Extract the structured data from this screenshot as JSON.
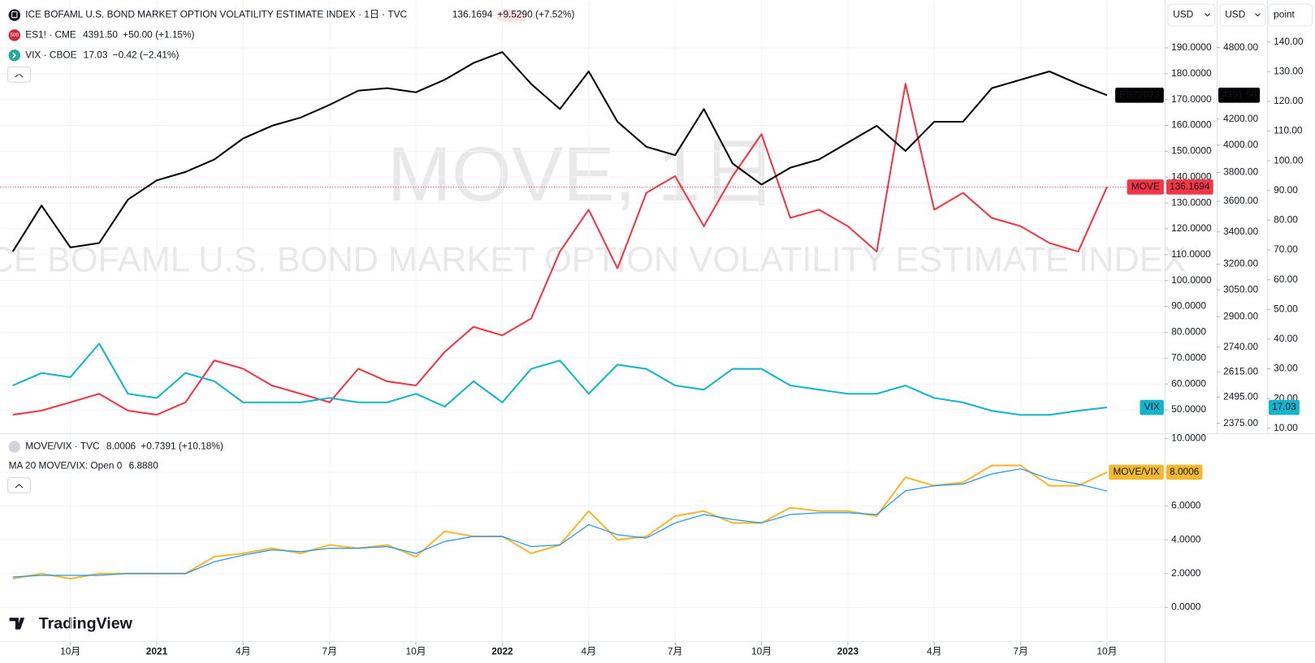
{
  "ui": {
    "selectors": [
      "USD",
      "USD",
      "point"
    ],
    "brand": "TradingView",
    "es_icon": "500"
  },
  "chart_data": [
    {
      "type": "line",
      "watermark": [
        "MOVE, 1日",
        "ICE BOFAML U.S. BOND MARKET OPTION VOLATILITY ESTIMATE INDEX"
      ],
      "x": [
        "2020-08",
        "2020-09",
        "2020-10",
        "2020-11",
        "2020-12",
        "2021-01",
        "2021-02",
        "2021-03",
        "2021-04",
        "2021-05",
        "2021-06",
        "2021-07",
        "2021-08",
        "2021-09",
        "2021-10",
        "2021-11",
        "2021-12",
        "2022-01",
        "2022-02",
        "2022-03",
        "2022-04",
        "2022-05",
        "2022-06",
        "2022-07",
        "2022-08",
        "2022-09",
        "2022-10",
        "2022-11",
        "2022-12",
        "2023-01",
        "2023-02",
        "2023-03",
        "2023-04",
        "2023-05",
        "2023-06",
        "2023-07",
        "2023-08",
        "2023-09",
        "2023-10"
      ],
      "xlim": [
        "2020-08",
        "2023-12"
      ],
      "ylim": [
        40.9,
        208.5
      ],
      "yticks": [
        {
          "value": 50,
          "label": "50.0000"
        },
        {
          "value": 60,
          "label": "60.0000"
        },
        {
          "value": 70,
          "label": "70.0000"
        },
        {
          "value": 80,
          "label": "80.0000"
        },
        {
          "value": 90,
          "label": "90.0000"
        },
        {
          "value": 100,
          "label": "100.0000"
        },
        {
          "value": 110,
          "label": "110.0000"
        },
        {
          "value": 120,
          "label": "120.0000"
        },
        {
          "value": 130,
          "label": "130.0000"
        },
        {
          "value": 140,
          "label": "140.0000"
        },
        {
          "value": 150,
          "label": "150.0000"
        },
        {
          "value": 160,
          "label": "160.0000"
        },
        {
          "value": 170,
          "label": "170.0000"
        },
        {
          "value": 180,
          "label": "180.0000"
        },
        {
          "value": 190,
          "label": "190.0000"
        }
      ],
      "y2lim": [
        2331,
        5249
      ],
      "y2log": true,
      "y2ticks": [
        {
          "value": 2375,
          "label": "2375.00"
        },
        {
          "value": 2495,
          "label": "2495.00"
        },
        {
          "value": 2615,
          "label": "2615.00"
        },
        {
          "value": 2740,
          "label": "2740.00"
        },
        {
          "value": 2900,
          "label": "2900.00"
        },
        {
          "value": 3050,
          "label": "3050.00"
        },
        {
          "value": 3200,
          "label": "3200.00"
        },
        {
          "value": 3400,
          "label": "3400.00"
        },
        {
          "value": 3600,
          "label": "3600.00"
        },
        {
          "value": 3800,
          "label": "3800.00"
        },
        {
          "value": 4000,
          "label": "4000.00"
        },
        {
          "value": 4200,
          "label": "4200.00"
        },
        {
          "value": 4800,
          "label": "4800.00"
        }
      ],
      "y3lim": [
        8.3,
        154.1
      ],
      "y3ticks": [
        {
          "value": 10,
          "label": "10.00"
        },
        {
          "value": 20,
          "label": "20.00"
        },
        {
          "value": 30,
          "label": "30.00"
        },
        {
          "value": 40,
          "label": "40.00"
        },
        {
          "value": 50,
          "label": "50.00"
        },
        {
          "value": 60,
          "label": "60.00"
        },
        {
          "value": 70,
          "label": "70.00"
        },
        {
          "value": 80,
          "label": "80.00"
        },
        {
          "value": 90,
          "label": "90.00"
        },
        {
          "value": 100,
          "label": "100.00"
        },
        {
          "value": 110,
          "label": "110.00"
        },
        {
          "value": 120,
          "label": "120.00"
        },
        {
          "value": 130,
          "label": "130.00"
        },
        {
          "value": 140,
          "label": "140.00"
        }
      ],
      "grid": true,
      "series": [
        {
          "name": "ICE BOFAML U.S. BOND MARKET OPTION VOLATILITY ESTIMATE INDEX · 1日 · TVC",
          "value": "136.1694",
          "change": "+9.5290 (+7.52%)",
          "tag": "MOVE",
          "color": "#f23645",
          "axis": "y",
          "price_line": true,
          "values": [
            48.1,
            49.7,
            52.9,
            56.2,
            49.7,
            48.1,
            52.9,
            69.1,
            65.9,
            59.4,
            56.2,
            52.9,
            65.9,
            61.0,
            59.4,
            72.4,
            82.1,
            78.8,
            85.3,
            111.2,
            127.4,
            104.7,
            133.9,
            140.4,
            121.0,
            140.4,
            156.6,
            124.2,
            127.4,
            121.0,
            111.2,
            176.1,
            127.4,
            133.9,
            124.2,
            121.0,
            114.5,
            111.2,
            136.1694
          ]
        },
        {
          "name": "ES1! · CME",
          "value": "4391.50",
          "change": "+50.00 (+1.15%)",
          "tag": "ESZ2023",
          "color": "#000000",
          "axis": "y2",
          "values": [
            3277,
            3572,
            3302,
            3329,
            3612,
            3744,
            3804,
            3894,
            4050,
            4147,
            4212,
            4313,
            4429,
            4450,
            4416,
            4521,
            4665,
            4761,
            4485,
            4279,
            4592,
            4179,
            3987,
            3925,
            4279,
            3864,
            3715,
            3834,
            3894,
            4019,
            4147,
            3956,
            4179,
            4179,
            4450,
            4521,
            4592,
            4485,
            4391.5
          ]
        },
        {
          "name": "VIX · CBOE",
          "value": "17.03",
          "change": "−0.42 (−2.41%)",
          "tag": "VIX",
          "color": "#12b5cb",
          "axis": "y3",
          "values": [
            24.4,
            28.6,
            27.2,
            38.5,
            21.6,
            20.2,
            28.6,
            25.8,
            18.7,
            18.7,
            18.7,
            20.2,
            18.7,
            18.7,
            21.6,
            17.3,
            25.8,
            18.7,
            30.0,
            32.8,
            21.6,
            31.4,
            30.0,
            24.4,
            23.0,
            30.0,
            30.0,
            24.4,
            23.0,
            21.6,
            21.6,
            24.4,
            20.2,
            18.7,
            15.9,
            14.5,
            14.5,
            15.9,
            17.03
          ]
        }
      ]
    },
    {
      "type": "line",
      "x": [
        "2020-08",
        "2020-09",
        "2020-10",
        "2020-11",
        "2020-12",
        "2021-01",
        "2021-02",
        "2021-03",
        "2021-04",
        "2021-05",
        "2021-06",
        "2021-07",
        "2021-08",
        "2021-09",
        "2021-10",
        "2021-11",
        "2021-12",
        "2022-01",
        "2022-02",
        "2022-03",
        "2022-04",
        "2022-05",
        "2022-06",
        "2022-07",
        "2022-08",
        "2022-09",
        "2022-10",
        "2022-11",
        "2022-12",
        "2023-01",
        "2023-02",
        "2023-03",
        "2023-04",
        "2023-05",
        "2023-06",
        "2023-07",
        "2023-08",
        "2023-09",
        "2023-10"
      ],
      "xlim": [
        "2020-08",
        "2023-12"
      ],
      "xticks": [
        {
          "value": "2020-10",
          "label": "10月"
        },
        {
          "value": "2021-01",
          "label": "2021"
        },
        {
          "value": "2021-04",
          "label": "4月"
        },
        {
          "value": "2021-07",
          "label": "7月"
        },
        {
          "value": "2021-10",
          "label": "10月"
        },
        {
          "value": "2022-01",
          "label": "2022"
        },
        {
          "value": "2022-04",
          "label": "4月"
        },
        {
          "value": "2022-07",
          "label": "7月"
        },
        {
          "value": "2022-10",
          "label": "10月"
        },
        {
          "value": "2023-01",
          "label": "2023"
        },
        {
          "value": "2023-04",
          "label": "4月"
        },
        {
          "value": "2023-07",
          "label": "7月"
        },
        {
          "value": "2023-10",
          "label": "10月"
        }
      ],
      "ylim": [
        -2,
        10.3
      ],
      "yticks": [
        {
          "value": 0,
          "label": "0.0000"
        },
        {
          "value": 2,
          "label": "2.0000"
        },
        {
          "value": 4,
          "label": "4.0000"
        },
        {
          "value": 6,
          "label": "6.0000"
        },
        {
          "value": 8,
          "label": "8.0000"
        },
        {
          "value": 10,
          "label": "10.0000"
        }
      ],
      "grid": true,
      "series": [
        {
          "name": "MOVE/VIX · TVC",
          "value": "8.0006",
          "change": "+0.7391 (+10.18%)",
          "tag": "MOVE/VIX",
          "color": "#f5b82e",
          "axis": "y",
          "values": [
            1.7,
            2.0,
            1.7,
            2.0,
            2.0,
            2.0,
            2.0,
            3.0,
            3.2,
            3.5,
            3.2,
            3.7,
            3.5,
            3.7,
            3.0,
            4.5,
            4.2,
            4.2,
            3.2,
            3.7,
            5.7,
            4.0,
            4.2,
            5.4,
            5.7,
            5.0,
            5.0,
            5.9,
            5.7,
            5.7,
            5.4,
            7.7,
            7.2,
            7.4,
            8.4,
            8.4,
            7.2,
            7.2,
            8.0006
          ]
        },
        {
          "name": "MA 20 MOVE/VIX: Open 0",
          "value": "6.8880",
          "color": "#2196f3",
          "axis": "y",
          "values": [
            1.8,
            1.9,
            1.9,
            1.9,
            2.0,
            2.0,
            2.0,
            2.7,
            3.1,
            3.4,
            3.3,
            3.5,
            3.5,
            3.6,
            3.2,
            3.9,
            4.2,
            4.2,
            3.6,
            3.7,
            4.9,
            4.3,
            4.1,
            5.0,
            5.5,
            5.2,
            5.0,
            5.5,
            5.6,
            5.6,
            5.5,
            6.9,
            7.2,
            7.3,
            7.9,
            8.2,
            7.6,
            7.3,
            6.888
          ]
        }
      ]
    }
  ]
}
